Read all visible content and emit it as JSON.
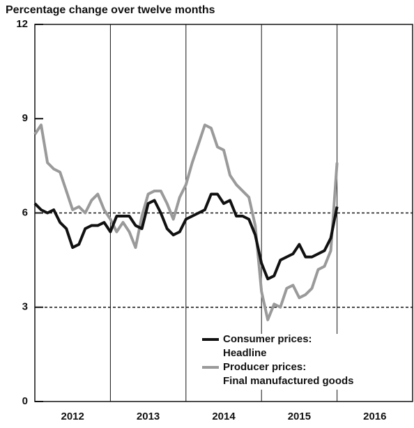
{
  "chart_data": {
    "type": "line",
    "title": "Percentage change over twelve months",
    "x": [
      2012,
      2012.083,
      2012.167,
      2012.25,
      2012.333,
      2012.417,
      2012.5,
      2012.583,
      2012.667,
      2012.75,
      2012.833,
      2012.917,
      2013,
      2013.083,
      2013.167,
      2013.25,
      2013.333,
      2013.417,
      2013.5,
      2013.583,
      2013.667,
      2013.75,
      2013.833,
      2013.917,
      2014,
      2014.083,
      2014.167,
      2014.25,
      2014.333,
      2014.417,
      2014.5,
      2014.583,
      2014.667,
      2014.75,
      2014.833,
      2014.917,
      2015,
      2015.083,
      2015.167,
      2015.25,
      2015.333,
      2015.417,
      2015.5,
      2015.583,
      2015.667,
      2015.75,
      2015.833,
      2015.917,
      2016
    ],
    "series": [
      {
        "name": "Consumer prices: Headline",
        "color": "#111111",
        "width": 4,
        "values": [
          6.3,
          6.1,
          6.0,
          6.1,
          5.7,
          5.5,
          4.9,
          5.0,
          5.5,
          5.6,
          5.6,
          5.7,
          5.4,
          5.9,
          5.9,
          5.9,
          5.6,
          5.5,
          6.3,
          6.4,
          6.0,
          5.5,
          5.3,
          5.4,
          5.8,
          5.9,
          6.0,
          6.1,
          6.6,
          6.6,
          6.3,
          6.4,
          5.9,
          5.9,
          5.8,
          5.3,
          4.4,
          3.9,
          4.0,
          4.5,
          4.6,
          4.7,
          5.0,
          4.6,
          4.6,
          4.7,
          4.8,
          5.2,
          6.2
        ]
      },
      {
        "name": "Producer prices: Final manufactured goods",
        "color": "#9a9a9a",
        "width": 4,
        "values": [
          8.5,
          8.8,
          7.6,
          7.4,
          7.3,
          6.7,
          6.1,
          6.2,
          6.0,
          6.4,
          6.6,
          6.1,
          5.8,
          5.4,
          5.7,
          5.4,
          4.9,
          5.9,
          6.6,
          6.7,
          6.7,
          6.3,
          5.8,
          6.5,
          6.9,
          7.6,
          8.2,
          8.8,
          8.7,
          8.1,
          8.0,
          7.2,
          6.9,
          6.7,
          6.5,
          5.6,
          3.5,
          2.6,
          3.1,
          3.0,
          3.6,
          3.7,
          3.3,
          3.4,
          3.6,
          4.2,
          4.3,
          4.8,
          7.6
        ]
      }
    ],
    "legend_labels": [
      [
        "Consumer prices:",
        "Headline"
      ],
      [
        "Producer prices:",
        "Final manufactured goods"
      ]
    ],
    "xlim": [
      2012,
      2017
    ],
    "xticks": [
      {
        "value": 2012.5,
        "label": "2012"
      },
      {
        "value": 2013.5,
        "label": "2013"
      },
      {
        "value": 2014.5,
        "label": "2014"
      },
      {
        "value": 2015.5,
        "label": "2015"
      },
      {
        "value": 2016.5,
        "label": "2016"
      }
    ],
    "year_lines": [
      2013,
      2014,
      2015,
      2016
    ],
    "ylim": [
      0,
      12
    ],
    "yticks": [
      0,
      3,
      6,
      9,
      12
    ],
    "reference_lines": [
      3,
      6
    ]
  }
}
